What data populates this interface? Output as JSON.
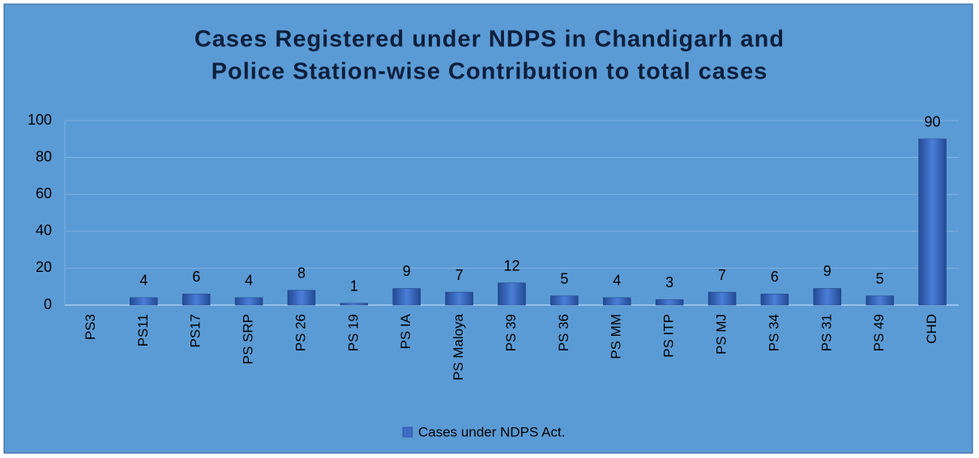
{
  "chart_data": {
    "type": "bar",
    "title": [
      "Cases Registered under NDPS in Chandigarh and",
      "Police Station-wise Contribution to total cases"
    ],
    "categories": [
      "PS3",
      "PS11",
      "PS17",
      "PS SRP",
      "PS 26",
      "PS 19",
      "PS IA",
      "PS Maloya",
      "PS 39",
      "PS 36",
      "PS MM",
      "PS ITP",
      "PS MJ",
      "PS 34",
      "PS 31",
      "PS 49",
      "CHD"
    ],
    "series": [
      {
        "name": "Cases under NDPS Act.",
        "color": "#3a6cc4",
        "values": [
          null,
          4,
          6,
          4,
          8,
          1,
          9,
          7,
          12,
          5,
          4,
          3,
          7,
          6,
          9,
          5,
          90
        ]
      }
    ],
    "ylim": [
      0,
      100
    ],
    "yticks": [
      0,
      20,
      40,
      60,
      80,
      100
    ],
    "grid": true,
    "legend": "bottom"
  }
}
